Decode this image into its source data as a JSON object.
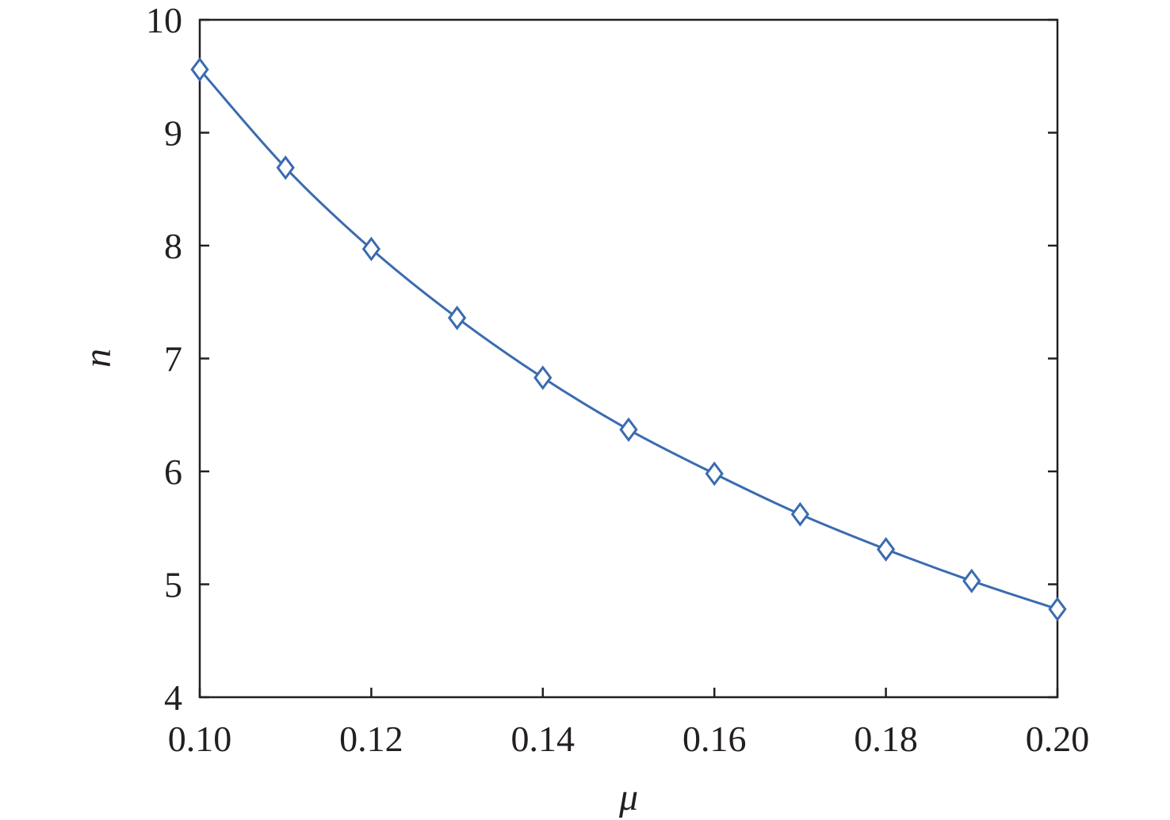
{
  "chart_data": {
    "type": "line",
    "title": "",
    "xlabel": "μ",
    "ylabel": "n",
    "xlim": [
      0.1,
      0.2
    ],
    "ylim": [
      4,
      10
    ],
    "xticks": [
      "0.10",
      "0.12",
      "0.14",
      "0.16",
      "0.18",
      "0.20"
    ],
    "yticks": [
      "4",
      "5",
      "6",
      "7",
      "8",
      "9",
      "10"
    ],
    "grid": false,
    "legend": "none",
    "series": [
      {
        "color": "#3a6bb0",
        "marker": "diamond",
        "x": [
          0.1,
          0.11,
          0.12,
          0.13,
          0.14,
          0.15,
          0.16,
          0.17,
          0.18,
          0.19,
          0.2
        ],
        "y": [
          9.56,
          8.69,
          7.97,
          7.36,
          6.83,
          6.37,
          5.98,
          5.62,
          5.31,
          5.03,
          4.78
        ]
      }
    ]
  }
}
